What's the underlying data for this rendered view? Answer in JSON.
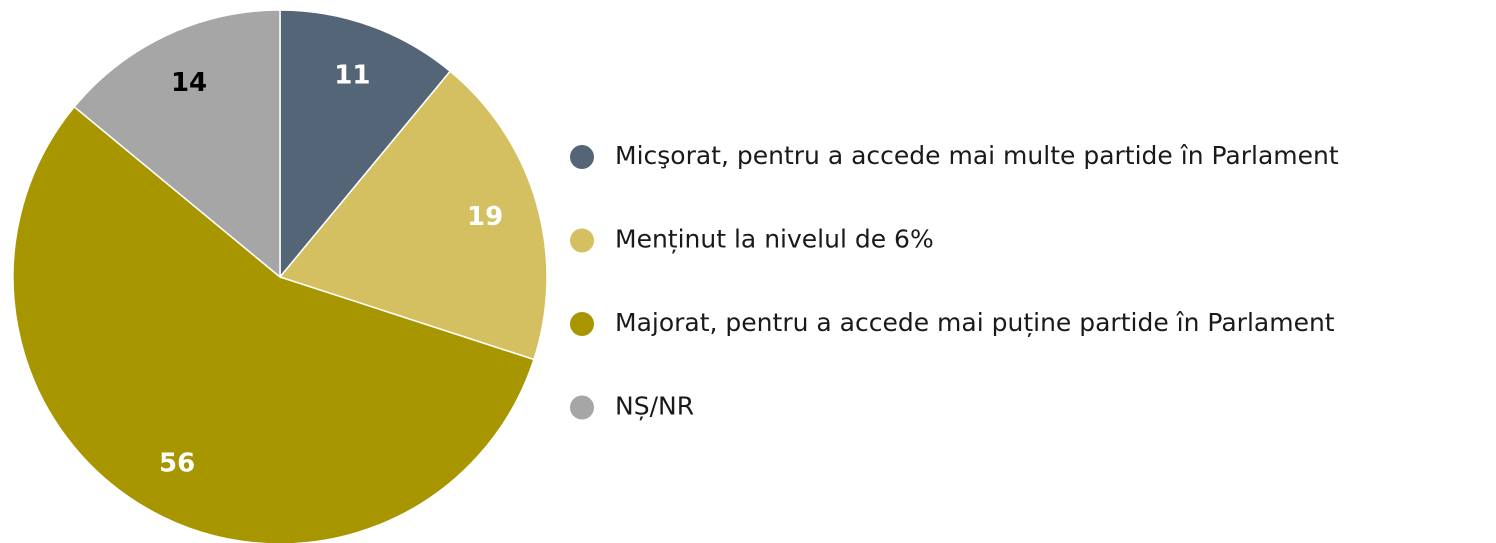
{
  "chart_data": {
    "type": "pie",
    "categories": [
      "Micşorat, pentru a accede mai multe partide în Parlament",
      "Menținut la nivelul de 6%",
      "Majorat, pentru a accede mai puține partide în Parlament",
      "NȘ/NR"
    ],
    "values": [
      11,
      19,
      56,
      14
    ],
    "colors": [
      "#546577",
      "#d4c060",
      "#a89600",
      "#a6a6a6"
    ],
    "label_colors": [
      "#ffffff",
      "#ffffff",
      "#ffffff",
      "#000000"
    ]
  }
}
